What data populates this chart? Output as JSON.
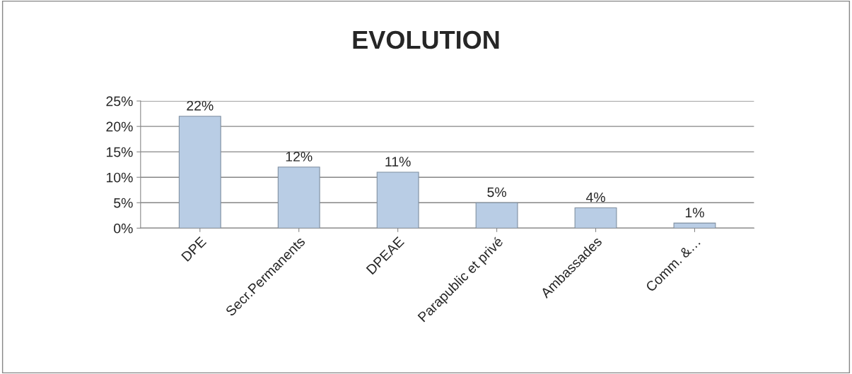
{
  "chart_data": {
    "type": "bar",
    "title": "EVOLUTION",
    "categories": [
      "DPE",
      "Secr.Permanents",
      "DPEAE",
      "Parapublic et privé",
      "Ambassades",
      "Comm. &…"
    ],
    "values": [
      22,
      12,
      11,
      5,
      4,
      1
    ],
    "value_labels": [
      "22%",
      "12%",
      "11%",
      "5%",
      "4%",
      "1%"
    ],
    "color": "#b9cde5",
    "ylim": [
      0,
      25
    ],
    "yticks": [
      {
        "value": 0,
        "label": "0%"
      },
      {
        "value": 5,
        "label": "5%"
      },
      {
        "value": 10,
        "label": "10%"
      },
      {
        "value": 15,
        "label": "15%"
      },
      {
        "value": 20,
        "label": "20%"
      },
      {
        "value": 25,
        "label": "25%"
      }
    ],
    "grid": "y"
  }
}
